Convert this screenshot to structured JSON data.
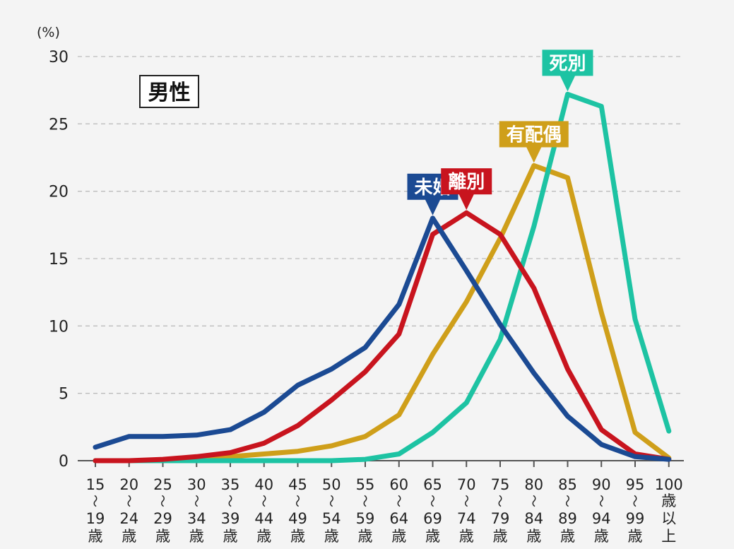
{
  "chart_data": {
    "type": "line",
    "panel_label": "男性",
    "unit_label": "(%)",
    "ylim": [
      0,
      30
    ],
    "yticks": [
      0,
      5,
      10,
      15,
      20,
      25,
      30
    ],
    "grid": true,
    "categories": [
      [
        "15",
        "〜",
        "19",
        "歳"
      ],
      [
        "20",
        "〜",
        "24",
        "歳"
      ],
      [
        "25",
        "〜",
        "29",
        "歳"
      ],
      [
        "30",
        "〜",
        "34",
        "歳"
      ],
      [
        "35",
        "〜",
        "39",
        "歳"
      ],
      [
        "40",
        "〜",
        "44",
        "歳"
      ],
      [
        "45",
        "〜",
        "49",
        "歳"
      ],
      [
        "50",
        "〜",
        "54",
        "歳"
      ],
      [
        "55",
        "〜",
        "59",
        "歳"
      ],
      [
        "60",
        "〜",
        "64",
        "歳"
      ],
      [
        "65",
        "〜",
        "69",
        "歳"
      ],
      [
        "70",
        "〜",
        "74",
        "歳"
      ],
      [
        "75",
        "〜",
        "79",
        "歳"
      ],
      [
        "80",
        "〜",
        "84",
        "歳"
      ],
      [
        "85",
        "〜",
        "89",
        "歳"
      ],
      [
        "90",
        "〜",
        "94",
        "歳"
      ],
      [
        "95",
        "〜",
        "99",
        "歳"
      ],
      [
        "100",
        "歳",
        "以",
        "上"
      ]
    ],
    "series": [
      {
        "name": "未婚",
        "color": "#1b4a93",
        "values": [
          1.0,
          1.8,
          1.8,
          1.9,
          2.3,
          3.6,
          5.6,
          6.8,
          8.4,
          11.6,
          18.0,
          14.1,
          10.1,
          6.5,
          3.3,
          1.2,
          0.3,
          0.1
        ],
        "label_index": 10
      },
      {
        "name": "離別",
        "color": "#c8141e",
        "values": [
          0.0,
          0.0,
          0.1,
          0.3,
          0.6,
          1.3,
          2.6,
          4.5,
          6.6,
          9.4,
          16.8,
          18.4,
          16.8,
          12.8,
          6.8,
          2.3,
          0.5,
          0.1
        ],
        "label_index": 11
      },
      {
        "name": "有配偶",
        "color": "#cf9f1a",
        "values": [
          0.0,
          0.0,
          0.0,
          0.1,
          0.3,
          0.5,
          0.7,
          1.1,
          1.8,
          3.4,
          7.9,
          11.8,
          16.5,
          21.9,
          21.0,
          11.0,
          2.1,
          0.2
        ],
        "label_index": 13
      },
      {
        "name": "死別",
        "color": "#1dc3a3",
        "values": [
          0.0,
          0.0,
          0.0,
          0.0,
          0.0,
          0.0,
          0.0,
          0.0,
          0.1,
          0.5,
          2.1,
          4.3,
          9.0,
          17.4,
          27.2,
          26.3,
          10.5,
          2.2
        ],
        "label_index": 14
      }
    ]
  }
}
